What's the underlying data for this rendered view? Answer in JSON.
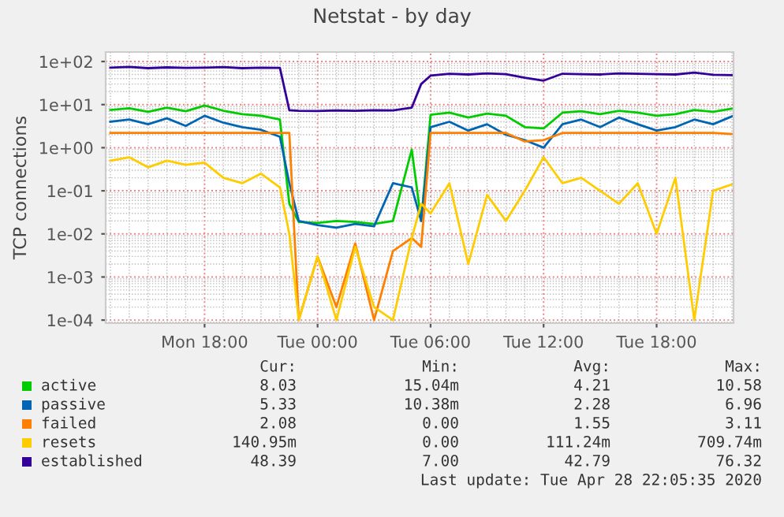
{
  "chart_data": {
    "type": "line",
    "title": "Netstat - by day",
    "ylabel": "TCP connections",
    "x": [
      "2020-04-27T13:00",
      "2020-04-27T14:00",
      "2020-04-27T15:00",
      "2020-04-27T16:00",
      "2020-04-27T17:00",
      "2020-04-27T18:00",
      "2020-04-27T19:00",
      "2020-04-27T20:00",
      "2020-04-27T21:00",
      "2020-04-27T22:00",
      "2020-04-27T22:30",
      "2020-04-27T23:00",
      "2020-04-28T00:00",
      "2020-04-28T01:00",
      "2020-04-28T02:00",
      "2020-04-28T03:00",
      "2020-04-28T04:00",
      "2020-04-28T05:00",
      "2020-04-28T05:30",
      "2020-04-28T06:00",
      "2020-04-28T07:00",
      "2020-04-28T08:00",
      "2020-04-28T09:00",
      "2020-04-28T10:00",
      "2020-04-28T11:00",
      "2020-04-28T12:00",
      "2020-04-28T13:00",
      "2020-04-28T14:00",
      "2020-04-28T15:00",
      "2020-04-28T16:00",
      "2020-04-28T17:00",
      "2020-04-28T18:00",
      "2020-04-28T19:00",
      "2020-04-28T20:00",
      "2020-04-28T21:00",
      "2020-04-28T22:00"
    ],
    "series": [
      {
        "name": "active",
        "color": "#00cc00",
        "values": [
          7.5,
          8.2,
          6.8,
          8.5,
          7.0,
          9.5,
          7.2,
          6.0,
          5.5,
          4.5,
          0.05,
          0.019,
          0.018,
          0.02,
          0.019,
          0.017,
          0.02,
          0.9,
          0.02,
          5.8,
          6.5,
          5.0,
          6.2,
          5.5,
          3.0,
          2.8,
          6.5,
          7.0,
          6.0,
          7.2,
          6.5,
          5.5,
          6.0,
          7.5,
          6.8,
          8.03
        ]
      },
      {
        "name": "passive",
        "color": "#0066b3",
        "values": [
          4.0,
          4.5,
          3.5,
          4.8,
          3.2,
          5.5,
          3.8,
          3.0,
          2.6,
          1.8,
          0.15,
          0.02,
          0.016,
          0.014,
          0.017,
          0.015,
          0.15,
          0.12,
          0.02,
          3.0,
          4.0,
          2.5,
          3.5,
          2.0,
          1.5,
          1.0,
          3.5,
          4.5,
          3.0,
          5.0,
          3.5,
          2.5,
          3.0,
          4.5,
          3.5,
          5.33
        ]
      },
      {
        "name": "failed",
        "color": "#ff8000",
        "values": [
          2.2,
          2.2,
          2.2,
          2.2,
          2.2,
          2.2,
          2.2,
          2.2,
          2.2,
          2.2,
          2.2,
          0.0001,
          0.003,
          0.0002,
          0.006,
          0.0001,
          0.004,
          0.008,
          0.005,
          2.2,
          2.2,
          2.2,
          2.2,
          2.2,
          1.4,
          1.5,
          2.2,
          2.2,
          2.2,
          2.2,
          2.2,
          2.2,
          2.2,
          2.2,
          2.2,
          2.08
        ]
      },
      {
        "name": "resets",
        "color": "#ffcc00",
        "values": [
          0.5,
          0.6,
          0.35,
          0.5,
          0.4,
          0.45,
          0.2,
          0.15,
          0.25,
          0.12,
          0.01,
          0.0001,
          0.003,
          0.0001,
          0.005,
          0.0002,
          0.0001,
          0.008,
          0.05,
          0.03,
          0.15,
          0.002,
          0.08,
          0.02,
          0.1,
          0.6,
          0.15,
          0.2,
          0.1,
          0.05,
          0.15,
          0.01,
          0.2,
          0.0001,
          0.1,
          0.14095
        ]
      },
      {
        "name": "established",
        "color": "#330099",
        "values": [
          72,
          75,
          70,
          73,
          71,
          72,
          74,
          70,
          72,
          71,
          7.4,
          7.2,
          7.1,
          7.3,
          7.2,
          7.4,
          7.3,
          8.5,
          30,
          47,
          52,
          50,
          53,
          51,
          42,
          36,
          52,
          51,
          50,
          53,
          52,
          51,
          50,
          55,
          49,
          48.39
        ]
      }
    ],
    "log": "y",
    "xlim": [
      "2020-04-27T12:45",
      "2020-04-28T22:05"
    ],
    "xticks": [
      {
        "value": "2020-04-27T18:00",
        "label": "Mon 18:00"
      },
      {
        "value": "2020-04-28T00:00",
        "label": "Tue 00:00"
      },
      {
        "value": "2020-04-28T06:00",
        "label": "Tue 06:00"
      },
      {
        "value": "2020-04-28T12:00",
        "label": "Tue 12:00"
      },
      {
        "value": "2020-04-28T18:00",
        "label": "Tue 18:00"
      }
    ],
    "ylim": [
      8.5e-05,
      166
    ],
    "yticks": [
      {
        "value": 100,
        "label": "1e+02"
      },
      {
        "value": 10,
        "label": "1e+01"
      },
      {
        "value": 1,
        "label": "1e+00"
      },
      {
        "value": 0.1,
        "label": "1e-01"
      },
      {
        "value": 0.01,
        "label": "1e-02"
      },
      {
        "value": 0.001,
        "label": "1e-03"
      },
      {
        "value": 0.0001,
        "label": "1e-04"
      }
    ],
    "grid": true,
    "legend": "bottom",
    "marker": "none",
    "line_style": "solid",
    "annotations": [
      "Cur:",
      "Min:",
      "Avg:",
      "Max:",
      "8.03",
      "15.04m",
      "4.21",
      "10.58",
      "5.33",
      "10.38m",
      "2.28",
      "6.96",
      "2.08",
      "0.00",
      "1.55",
      "3.11",
      "140.95m",
      "0.00",
      "111.24m",
      "709.74m",
      "48.39",
      "7.00",
      "42.79",
      "76.32",
      "Last update: Tue Apr 28 22:05:35 2020"
    ]
  }
}
